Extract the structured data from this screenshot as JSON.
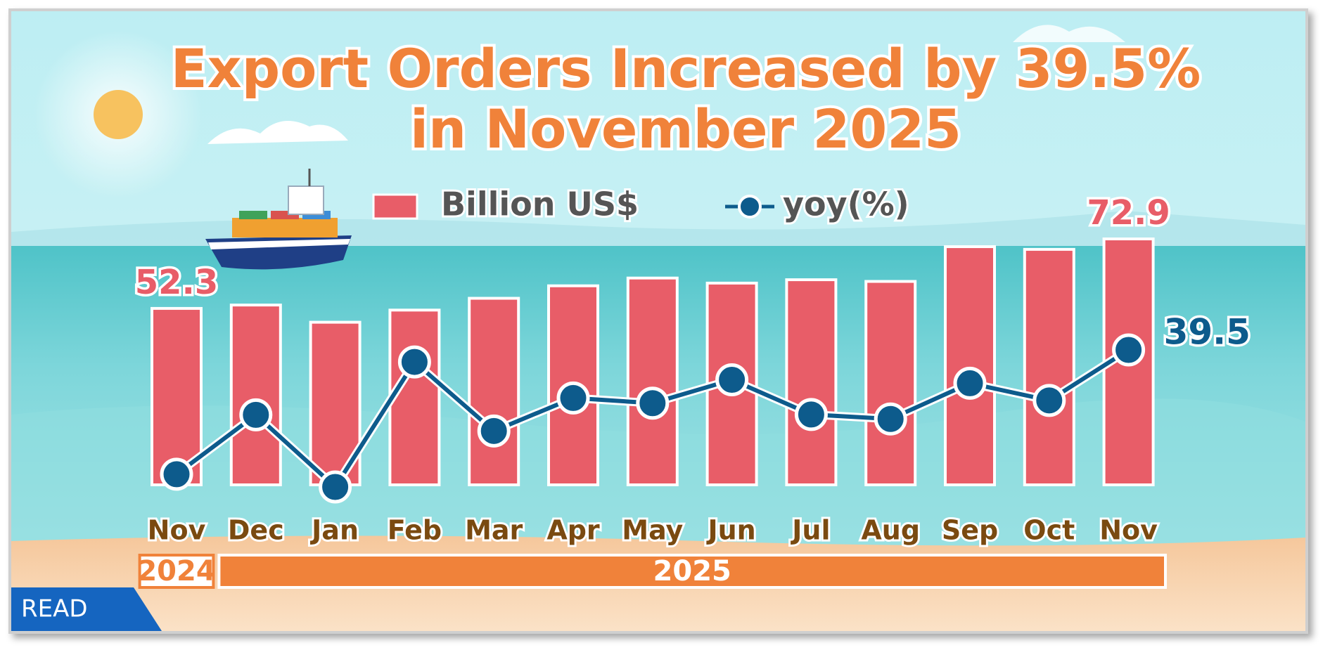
{
  "chart_data": {
    "type": "bar",
    "title": [
      "Export Orders Increased by 39.5%",
      "in November 2025"
    ],
    "categories": [
      "Nov",
      "Dec",
      "Jan",
      "Feb",
      "Mar",
      "Apr",
      "May",
      "Jun",
      "Jul",
      "Aug",
      "Sep",
      "Oct",
      "Nov"
    ],
    "year_groups": [
      {
        "label": "2024",
        "span": 1
      },
      {
        "label": "2025",
        "span": 12
      }
    ],
    "series": [
      {
        "name": "Billion US$",
        "color": "#e85d68",
        "type": "bar",
        "values": [
          52.3,
          53.3,
          48.2,
          51.8,
          55.3,
          59.0,
          61.3,
          59.8,
          60.8,
          60.3,
          70.6,
          69.8,
          72.9
        ]
      },
      {
        "name": "yoy(%)",
        "color": "#0d5b8c",
        "type": "line",
        "axis": "y2",
        "values": [
          3.3,
          20.6,
          -0.4,
          36.0,
          15.9,
          25.5,
          24.0,
          30.8,
          20.7,
          19.4,
          29.8,
          24.8,
          39.5
        ]
      }
    ],
    "badge": "READ"
  }
}
